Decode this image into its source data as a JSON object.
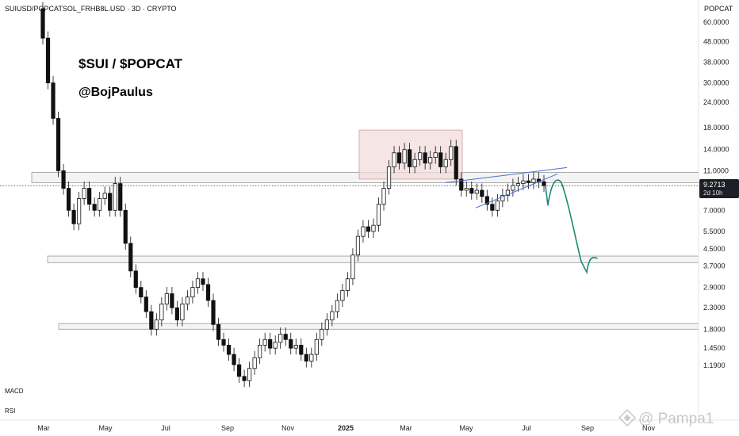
{
  "header": {
    "symbol": "SUIUSD/POPCATSOL_FRHB8L.USD · 3D · CRYPTO",
    "right_label": "POPCAT"
  },
  "annotations": {
    "title": "$SUI / $POPCAT",
    "author": "@BojPaulus"
  },
  "price_tag": {
    "value": "9.2713",
    "countdown": "2d 10h"
  },
  "indicators": [
    "MACD",
    "RSI"
  ],
  "watermark": "@ Pampa1",
  "colors": {
    "candle": "#111111",
    "zone_fill": "#f4f4f4",
    "zone_stroke": "#999999",
    "box_fill": "#f3dcdc",
    "wedge": "#4a6fd6",
    "projection": "#1b8a72",
    "price_tag_bg": "#1c1f26"
  },
  "chart_data": {
    "type": "candlestick",
    "y_scale": "log",
    "ylim": [
      0.95,
      70
    ],
    "y_ticks": [
      "60.0000",
      "48.0000",
      "38.0000",
      "30.0000",
      "24.0000",
      "18.0000",
      "14.0000",
      "11.0000",
      "7.0000",
      "5.5000",
      "4.5000",
      "3.7000",
      "2.9000",
      "2.3000",
      "1.8000",
      "1.4500",
      "1.1900"
    ],
    "x_ticks": [
      "Mar",
      "May",
      "Jul",
      "Sep",
      "Nov",
      "2025",
      "Mar",
      "May",
      "Jul",
      "Sep",
      "Nov"
    ],
    "current_price": 9.2713,
    "series": [
      {
        "candles_approx": [
          [
            70,
            50
          ],
          [
            50,
            30
          ],
          [
            30,
            20
          ],
          [
            20,
            11
          ],
          [
            11,
            9
          ],
          [
            9,
            7
          ],
          [
            7,
            6
          ],
          [
            6,
            8
          ],
          [
            8,
            9
          ],
          [
            9,
            7.5
          ],
          [
            7.5,
            7
          ],
          [
            7,
            8
          ],
          [
            8,
            8.5
          ],
          [
            8.5,
            7
          ],
          [
            7,
            9.5
          ],
          [
            9.5,
            7
          ],
          [
            7,
            4.8
          ],
          [
            4.8,
            3.5
          ],
          [
            3.5,
            2.9
          ],
          [
            2.9,
            2.6
          ],
          [
            2.6,
            2.2
          ],
          [
            2.2,
            1.8
          ],
          [
            1.8,
            2
          ],
          [
            2,
            2.4
          ],
          [
            2.4,
            2.7
          ],
          [
            2.7,
            2.3
          ],
          [
            2.3,
            2.0
          ],
          [
            2.0,
            2.4
          ],
          [
            2.4,
            2.6
          ],
          [
            2.6,
            2.9
          ],
          [
            2.9,
            3.2
          ],
          [
            3.2,
            3.0
          ],
          [
            3.0,
            2.5
          ],
          [
            2.5,
            1.9
          ],
          [
            1.9,
            1.6
          ],
          [
            1.6,
            1.5
          ],
          [
            1.5,
            1.35
          ],
          [
            1.35,
            1.2
          ],
          [
            1.2,
            1.05
          ],
          [
            1.05,
            1.0
          ],
          [
            1.0,
            1.15
          ],
          [
            1.15,
            1.3
          ],
          [
            1.3,
            1.5
          ],
          [
            1.5,
            1.6
          ],
          [
            1.6,
            1.45
          ],
          [
            1.45,
            1.55
          ],
          [
            1.55,
            1.7
          ],
          [
            1.7,
            1.6
          ],
          [
            1.6,
            1.45
          ],
          [
            1.45,
            1.5
          ],
          [
            1.5,
            1.35
          ],
          [
            1.35,
            1.25
          ],
          [
            1.25,
            1.35
          ],
          [
            1.35,
            1.6
          ],
          [
            1.6,
            1.8
          ],
          [
            1.8,
            2.0
          ],
          [
            2.0,
            2.2
          ],
          [
            2.2,
            2.5
          ],
          [
            2.5,
            2.8
          ],
          [
            2.8,
            3.2
          ],
          [
            3.2,
            4.2
          ],
          [
            4.2,
            5.2
          ],
          [
            5.2,
            5.8
          ],
          [
            5.8,
            5.5
          ],
          [
            5.5,
            5.9
          ],
          [
            5.9,
            7.5
          ],
          [
            7.5,
            9.0
          ],
          [
            9.0,
            11.5
          ],
          [
            11.5,
            13.5
          ],
          [
            13.5,
            12.0
          ],
          [
            12.0,
            14.0
          ],
          [
            14.0,
            11.5
          ],
          [
            11.5,
            12.5
          ],
          [
            12.5,
            13.5
          ],
          [
            13.5,
            12.0
          ],
          [
            12.0,
            12.8
          ],
          [
            12.8,
            13.5
          ],
          [
            13.5,
            11.5
          ],
          [
            11.5,
            12.5
          ],
          [
            12.5,
            14.5
          ],
          [
            14.5,
            10.0
          ],
          [
            10.0,
            8.8
          ],
          [
            8.8,
            9.0
          ],
          [
            9.0,
            8.5
          ],
          [
            8.5,
            8.8
          ],
          [
            8.8,
            8.2
          ],
          [
            8.2,
            7.5
          ],
          [
            7.5,
            7.0
          ],
          [
            7.0,
            7.8
          ],
          [
            7.8,
            8.3
          ],
          [
            8.3,
            8.8
          ],
          [
            8.8,
            9.3
          ],
          [
            9.3,
            9.5
          ],
          [
            9.5,
            9.8
          ],
          [
            9.8,
            9.6
          ],
          [
            9.6,
            10.0
          ],
          [
            10.0,
            9.7
          ],
          [
            9.7,
            9.2713
          ]
        ]
      }
    ],
    "horizontal_zones": [
      {
        "low": 9.6,
        "high": 10.8
      },
      {
        "low": 3.85,
        "high": 4.15
      },
      {
        "low": 1.8,
        "high": 1.92
      }
    ],
    "range_box": {
      "low": 10.0,
      "high": 17.5
    },
    "wedge_lines": true,
    "projection_path": true
  }
}
